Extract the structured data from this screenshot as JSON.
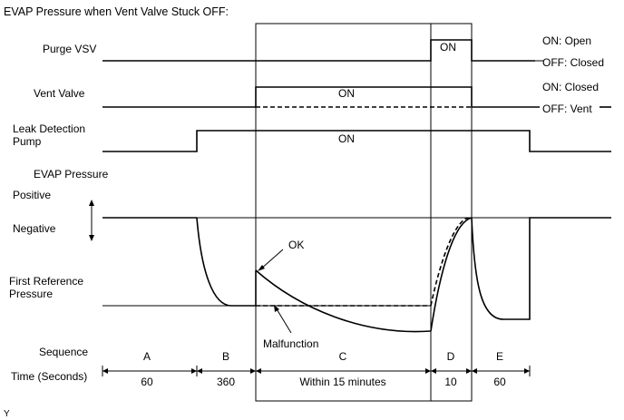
{
  "title": "EVAP Pressure when Vent Valve Stuck OFF:",
  "rows": {
    "purge_vsv": "Purge VSV",
    "vent_valve": "Vent Valve",
    "leak_pump_1": "Leak Detection",
    "leak_pump_2": "Pump",
    "evap_pressure": "EVAP Pressure",
    "positive": "Positive",
    "negative": "Negative",
    "first_ref_1": "First Reference",
    "first_ref_2": "Pressure",
    "sequence": "Sequence",
    "time": "Time (Seconds)"
  },
  "signals": {
    "purge_on": "ON",
    "vent_on": "ON",
    "pump_on": "ON"
  },
  "legend": {
    "purge_on": "ON: Open",
    "purge_off": "OFF: Closed",
    "vent_on": "ON: Closed",
    "vent_off": "OFF: Vent"
  },
  "curve_labels": {
    "ok": "OK",
    "malfunction": "Malfunction"
  },
  "sequence": [
    "A",
    "B",
    "C",
    "D",
    "E"
  ],
  "times": [
    "60",
    "360",
    "Within 15 minutes",
    "10",
    "60"
  ],
  "footnote": "Y"
}
